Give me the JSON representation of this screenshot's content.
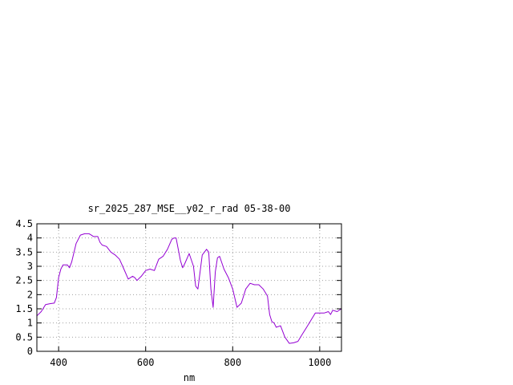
{
  "chart_data": {
    "type": "line",
    "title": "sr_2025_287_MSE__y02_r_rad 05-38-00",
    "xlabel": "nm",
    "ylabel": "",
    "xlim": [
      350,
      1050
    ],
    "ylim": [
      0,
      4.5
    ],
    "x_ticks": [
      400,
      600,
      800,
      1000
    ],
    "x_tick_labels": [
      "400",
      "600",
      "800",
      "1000"
    ],
    "y_ticks": [
      0,
      0.5,
      1,
      1.5,
      2,
      2.5,
      3,
      3.5,
      4,
      4.5
    ],
    "y_tick_labels": [
      "0",
      "0.5",
      "1",
      "1.5",
      "2",
      "2.5",
      "3",
      "3.5",
      "4",
      "4.5"
    ],
    "grid": true,
    "line_color": "#9400d3",
    "series": [
      {
        "x": [
          350,
          360,
          370,
          380,
          390,
          395,
          400,
          405,
          410,
          420,
          425,
          430,
          440,
          450,
          460,
          470,
          475,
          480,
          490,
          495,
          500,
          510,
          520,
          530,
          540,
          550,
          560,
          570,
          575,
          580,
          590,
          600,
          610,
          620,
          625,
          630,
          640,
          650,
          660,
          665,
          670,
          680,
          685,
          690,
          700,
          710,
          715,
          720,
          730,
          740,
          745,
          750,
          755,
          760,
          765,
          770,
          780,
          790,
          800,
          810,
          820,
          830,
          840,
          850,
          860,
          870,
          880,
          885,
          890,
          895,
          900,
          910,
          920,
          930,
          940,
          950,
          960,
          970,
          980,
          990,
          1000,
          1010,
          1020,
          1025,
          1030,
          1040,
          1050
        ],
        "y": [
          1.25,
          1.4,
          1.65,
          1.68,
          1.7,
          1.9,
          2.6,
          2.9,
          3.05,
          3.05,
          2.95,
          3.15,
          3.8,
          4.1,
          4.15,
          4.15,
          4.1,
          4.05,
          4.05,
          3.85,
          3.75,
          3.7,
          3.5,
          3.4,
          3.25,
          2.9,
          2.55,
          2.65,
          2.6,
          2.5,
          2.65,
          2.85,
          2.9,
          2.85,
          3.05,
          3.25,
          3.35,
          3.6,
          3.95,
          4.0,
          4.0,
          3.2,
          2.95,
          3.1,
          3.45,
          3.0,
          2.3,
          2.2,
          3.4,
          3.6,
          3.5,
          2.2,
          1.55,
          2.8,
          3.3,
          3.35,
          2.9,
          2.6,
          2.2,
          1.55,
          1.7,
          2.2,
          2.4,
          2.35,
          2.35,
          2.2,
          1.95,
          1.3,
          1.05,
          1.0,
          0.85,
          0.9,
          0.5,
          0.28,
          0.3,
          0.35,
          0.6,
          0.85,
          1.1,
          1.35,
          1.35,
          1.35,
          1.4,
          1.3,
          1.45,
          1.4,
          1.5
        ]
      }
    ]
  }
}
